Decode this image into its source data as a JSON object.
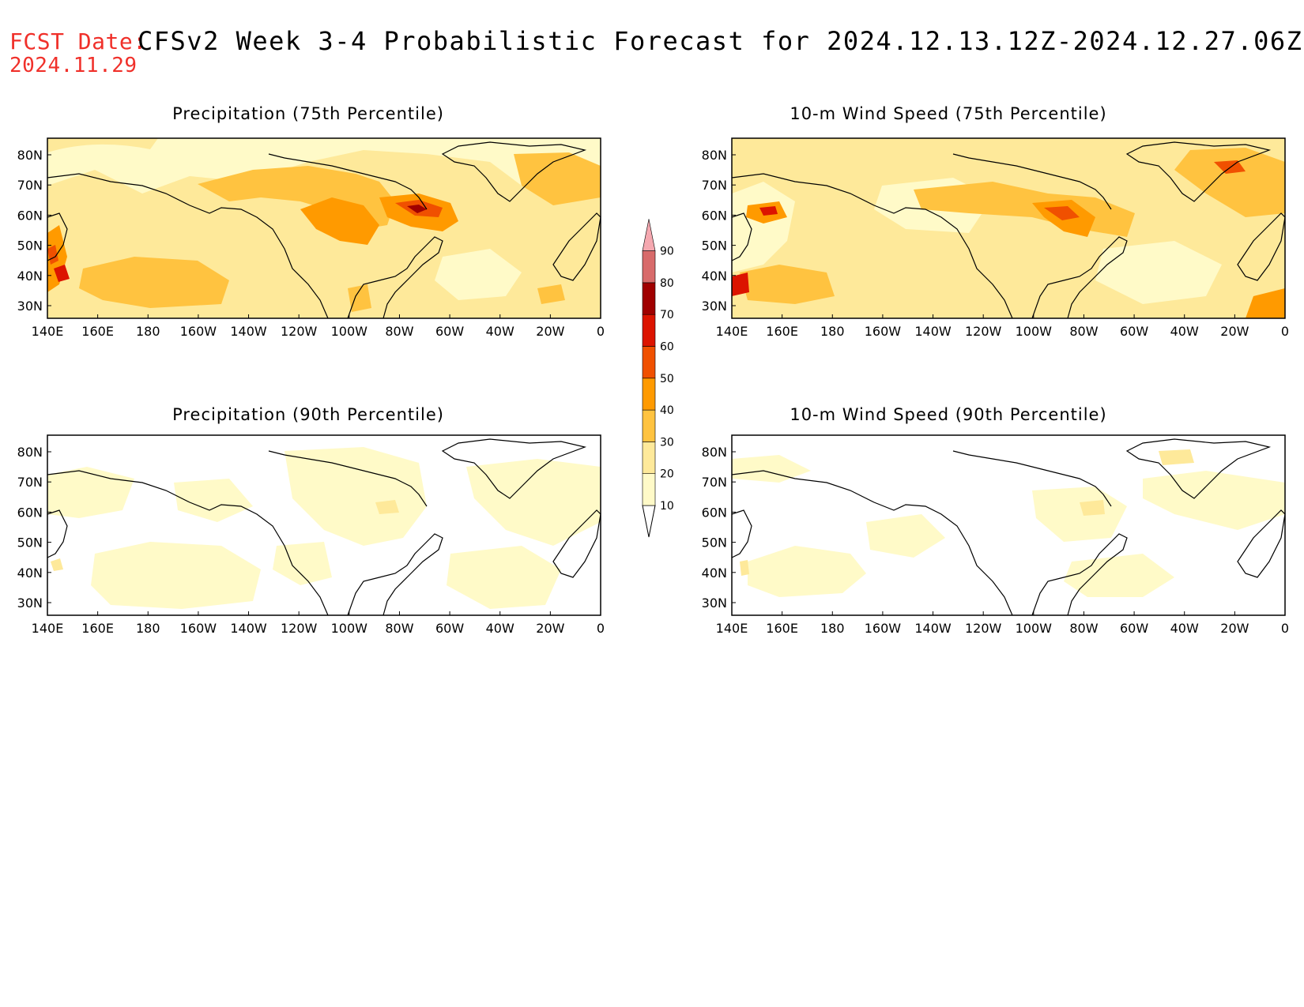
{
  "header": {
    "fcst_label": "FCST Date:",
    "fcst_date": "2024.11.29",
    "title": "CFSv2 Week 3-4 Probabilistic Forecast for 2024.12.13.12Z-2024.12.27.06Z"
  },
  "panels": [
    {
      "id": "precip-75",
      "title": "Precipitation (75th Percentile)"
    },
    {
      "id": "wind-75",
      "title": "10-m Wind Speed (75th Percentile)"
    },
    {
      "id": "precip-90",
      "title": "Precipitation (90th Percentile)"
    },
    {
      "id": "wind-90",
      "title": "10-m Wind Speed (90th Percentile)"
    }
  ],
  "axes": {
    "lon_labels": [
      "140E",
      "160E",
      "180",
      "160W",
      "140W",
      "120W",
      "100W",
      "80W",
      "60W",
      "40W",
      "20W",
      "0"
    ],
    "lat_labels": [
      "80N",
      "70N",
      "60N",
      "50N",
      "40N",
      "30N"
    ]
  },
  "colorbar": {
    "levels": [
      10,
      20,
      30,
      40,
      50,
      60,
      70,
      80,
      90
    ],
    "level_labels": [
      "10",
      "20",
      "30",
      "40",
      "50",
      "60",
      "70",
      "80",
      "90"
    ],
    "colors": [
      "#fffac8",
      "#fee99a",
      "#ffc340",
      "#ff9a00",
      "#f05000",
      "#dc1400",
      "#a00000",
      "#d86b6b",
      "#f5a8b0",
      "#fde4e8"
    ]
  }
}
